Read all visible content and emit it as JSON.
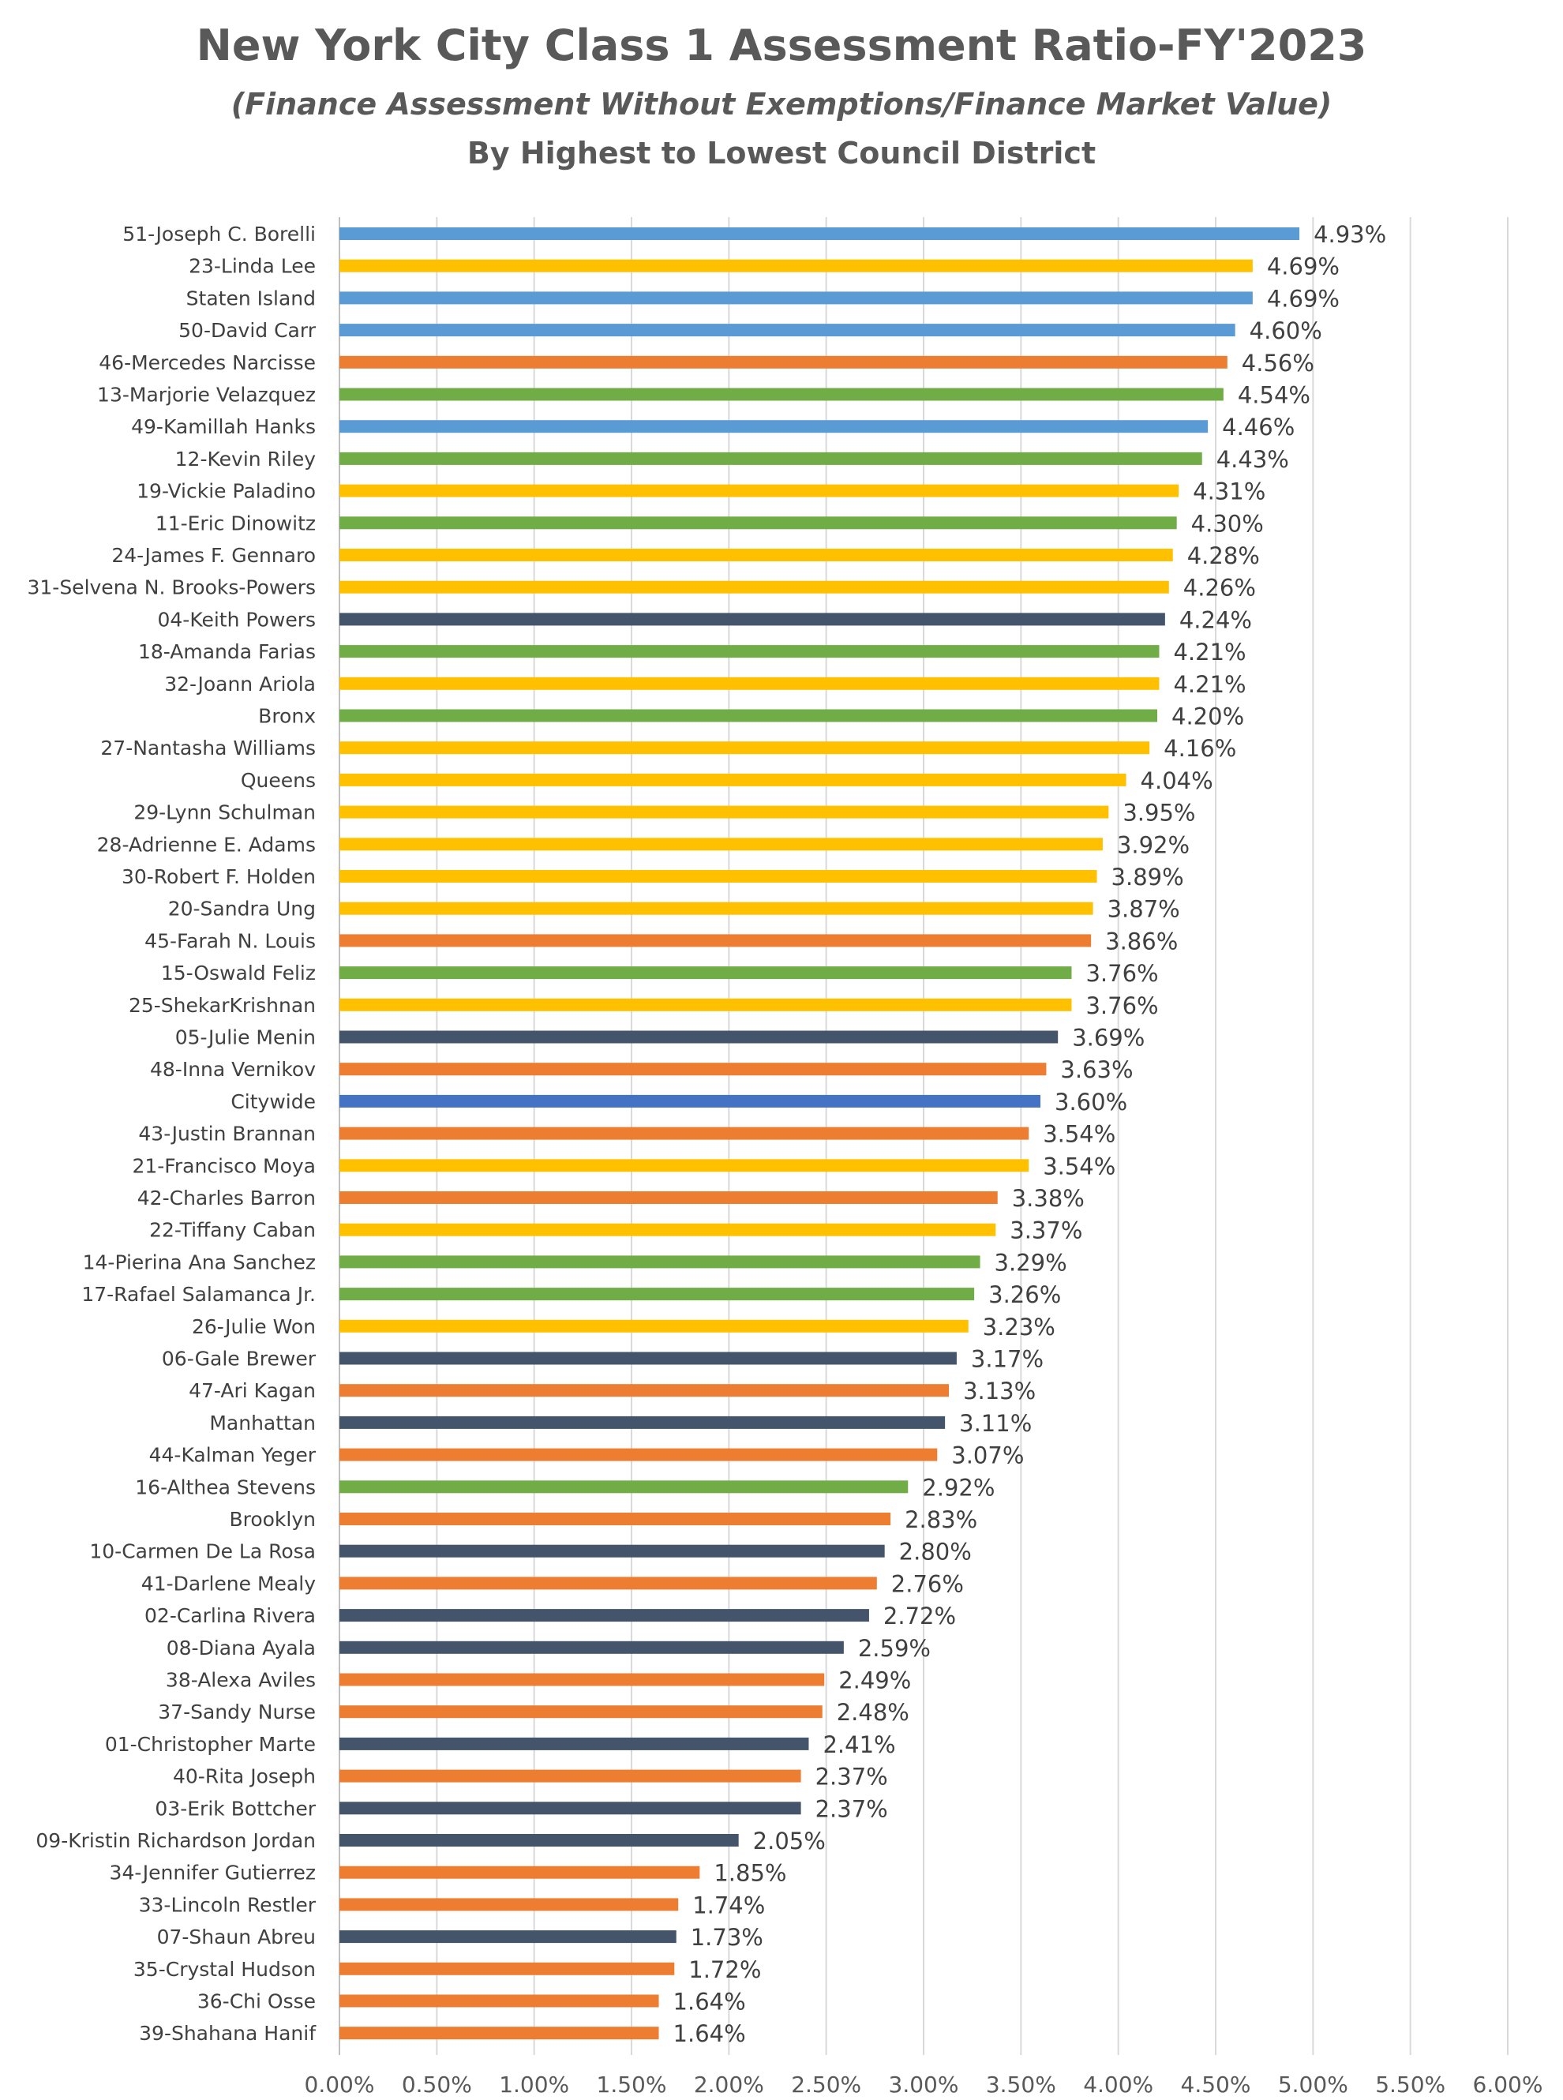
{
  "chart_data": {
    "type": "bar",
    "orientation": "horizontal",
    "title": "New York City Class 1 Assessment Ratio-FY'2023",
    "subtitle": "(Finance Assessment Without Exemptions/Finance Market Value)",
    "subtitle2": "By Highest to Lowest Council District",
    "xlim": [
      0,
      6
    ],
    "x_ticks": [
      "0.00%",
      "0.50%",
      "1.00%",
      "1.50%",
      "2.00%",
      "2.50%",
      "3.00%",
      "3.50%",
      "4.00%",
      "4.50%",
      "5.00%",
      "5.50%",
      "6.00%"
    ],
    "grid": "vertical",
    "colors": {
      "staten_island": "#5B9BD5",
      "queens": "#FFC000",
      "brooklyn": "#ED7D31",
      "bronx": "#70AD47",
      "manhattan": "#44546A",
      "citywide": "#4472C4"
    },
    "bars": [
      {
        "label": "51-Joseph C. Borelli",
        "value": 4.93,
        "display": "4.93%",
        "color": "#5B9BD5"
      },
      {
        "label": "23-Linda Lee",
        "value": 4.69,
        "display": "4.69%",
        "color": "#FFC000"
      },
      {
        "label": "Staten Island",
        "value": 4.69,
        "display": "4.69%",
        "color": "#5B9BD5"
      },
      {
        "label": "50-David Carr",
        "value": 4.6,
        "display": "4.60%",
        "color": "#5B9BD5"
      },
      {
        "label": "46-Mercedes Narcisse",
        "value": 4.56,
        "display": "4.56%",
        "color": "#ED7D31"
      },
      {
        "label": "13-Marjorie Velazquez",
        "value": 4.54,
        "display": "4.54%",
        "color": "#70AD47"
      },
      {
        "label": "49-Kamillah Hanks",
        "value": 4.46,
        "display": "4.46%",
        "color": "#5B9BD5"
      },
      {
        "label": "12-Kevin Riley",
        "value": 4.43,
        "display": "4.43%",
        "color": "#70AD47"
      },
      {
        "label": "19-Vickie Paladino",
        "value": 4.31,
        "display": "4.31%",
        "color": "#FFC000"
      },
      {
        "label": "11-Eric Dinowitz",
        "value": 4.3,
        "display": "4.30%",
        "color": "#70AD47"
      },
      {
        "label": "24-James F. Gennaro",
        "value": 4.28,
        "display": "4.28%",
        "color": "#FFC000"
      },
      {
        "label": "31-Selvena N. Brooks-Powers",
        "value": 4.26,
        "display": "4.26%",
        "color": "#FFC000"
      },
      {
        "label": "04-Keith Powers",
        "value": 4.24,
        "display": "4.24%",
        "color": "#44546A"
      },
      {
        "label": "18-Amanda Farias",
        "value": 4.21,
        "display": "4.21%",
        "color": "#70AD47"
      },
      {
        "label": "32-Joann Ariola",
        "value": 4.21,
        "display": "4.21%",
        "color": "#FFC000"
      },
      {
        "label": "Bronx",
        "value": 4.2,
        "display": "4.20%",
        "color": "#70AD47"
      },
      {
        "label": "27-Nantasha Williams",
        "value": 4.16,
        "display": "4.16%",
        "color": "#FFC000"
      },
      {
        "label": "Queens",
        "value": 4.04,
        "display": "4.04%",
        "color": "#FFC000"
      },
      {
        "label": "29-Lynn Schulman",
        "value": 3.95,
        "display": "3.95%",
        "color": "#FFC000"
      },
      {
        "label": "28-Adrienne E. Adams",
        "value": 3.92,
        "display": "3.92%",
        "color": "#FFC000"
      },
      {
        "label": "30-Robert F. Holden",
        "value": 3.89,
        "display": "3.89%",
        "color": "#FFC000"
      },
      {
        "label": "20-Sandra Ung",
        "value": 3.87,
        "display": "3.87%",
        "color": "#FFC000"
      },
      {
        "label": "45-Farah N. Louis",
        "value": 3.86,
        "display": "3.86%",
        "color": "#ED7D31"
      },
      {
        "label": "15-Oswald Feliz",
        "value": 3.76,
        "display": "3.76%",
        "color": "#70AD47"
      },
      {
        "label": "25-ShekarKrishnan",
        "value": 3.76,
        "display": "3.76%",
        "color": "#FFC000"
      },
      {
        "label": "05-Julie Menin",
        "value": 3.69,
        "display": "3.69%",
        "color": "#44546A"
      },
      {
        "label": "48-Inna Vernikov",
        "value": 3.63,
        "display": "3.63%",
        "color": "#ED7D31"
      },
      {
        "label": "Citywide",
        "value": 3.6,
        "display": "3.60%",
        "color": "#4472C4"
      },
      {
        "label": "43-Justin Brannan",
        "value": 3.54,
        "display": "3.54%",
        "color": "#ED7D31"
      },
      {
        "label": "21-Francisco Moya",
        "value": 3.54,
        "display": "3.54%",
        "color": "#FFC000"
      },
      {
        "label": "42-Charles Barron",
        "value": 3.38,
        "display": "3.38%",
        "color": "#ED7D31"
      },
      {
        "label": "22-Tiffany Caban",
        "value": 3.37,
        "display": "3.37%",
        "color": "#FFC000"
      },
      {
        "label": "14-Pierina Ana Sanchez",
        "value": 3.29,
        "display": "3.29%",
        "color": "#70AD47"
      },
      {
        "label": "17-Rafael Salamanca Jr.",
        "value": 3.26,
        "display": "3.26%",
        "color": "#70AD47"
      },
      {
        "label": "26-Julie Won",
        "value": 3.23,
        "display": "3.23%",
        "color": "#FFC000"
      },
      {
        "label": "06-Gale Brewer",
        "value": 3.17,
        "display": "3.17%",
        "color": "#44546A"
      },
      {
        "label": "47-Ari Kagan",
        "value": 3.13,
        "display": "3.13%",
        "color": "#ED7D31"
      },
      {
        "label": "Manhattan",
        "value": 3.11,
        "display": "3.11%",
        "color": "#44546A"
      },
      {
        "label": "44-Kalman Yeger",
        "value": 3.07,
        "display": "3.07%",
        "color": "#ED7D31"
      },
      {
        "label": "16-Althea Stevens",
        "value": 2.92,
        "display": "2.92%",
        "color": "#70AD47"
      },
      {
        "label": "Brooklyn",
        "value": 2.83,
        "display": "2.83%",
        "color": "#ED7D31"
      },
      {
        "label": "10-Carmen De La Rosa",
        "value": 2.8,
        "display": "2.80%",
        "color": "#44546A"
      },
      {
        "label": "41-Darlene Mealy",
        "value": 2.76,
        "display": "2.76%",
        "color": "#ED7D31"
      },
      {
        "label": "02-Carlina Rivera",
        "value": 2.72,
        "display": "2.72%",
        "color": "#44546A"
      },
      {
        "label": "08-Diana Ayala",
        "value": 2.59,
        "display": "2.59%",
        "color": "#44546A"
      },
      {
        "label": "38-Alexa Aviles",
        "value": 2.49,
        "display": "2.49%",
        "color": "#ED7D31"
      },
      {
        "label": "37-Sandy Nurse",
        "value": 2.48,
        "display": "2.48%",
        "color": "#ED7D31"
      },
      {
        "label": "01-Christopher Marte",
        "value": 2.41,
        "display": "2.41%",
        "color": "#44546A"
      },
      {
        "label": "40-Rita Joseph",
        "value": 2.37,
        "display": "2.37%",
        "color": "#ED7D31"
      },
      {
        "label": "03-Erik Bottcher",
        "value": 2.37,
        "display": "2.37%",
        "color": "#44546A"
      },
      {
        "label": "09-Kristin  Richardson Jordan",
        "value": 2.05,
        "display": "2.05%",
        "color": "#44546A"
      },
      {
        "label": "34-Jennifer Gutierrez",
        "value": 1.85,
        "display": "1.85%",
        "color": "#ED7D31"
      },
      {
        "label": "33-Lincoln Restler",
        "value": 1.74,
        "display": "1.74%",
        "color": "#ED7D31"
      },
      {
        "label": "07-Shaun Abreu",
        "value": 1.73,
        "display": "1.73%",
        "color": "#44546A"
      },
      {
        "label": "35-Crystal Hudson",
        "value": 1.72,
        "display": "1.72%",
        "color": "#ED7D31"
      },
      {
        "label": "36-Chi Osse",
        "value": 1.64,
        "display": "1.64%",
        "color": "#ED7D31"
      },
      {
        "label": "39-Shahana Hanif",
        "value": 1.64,
        "display": "1.64%",
        "color": "#ED7D31"
      }
    ]
  }
}
